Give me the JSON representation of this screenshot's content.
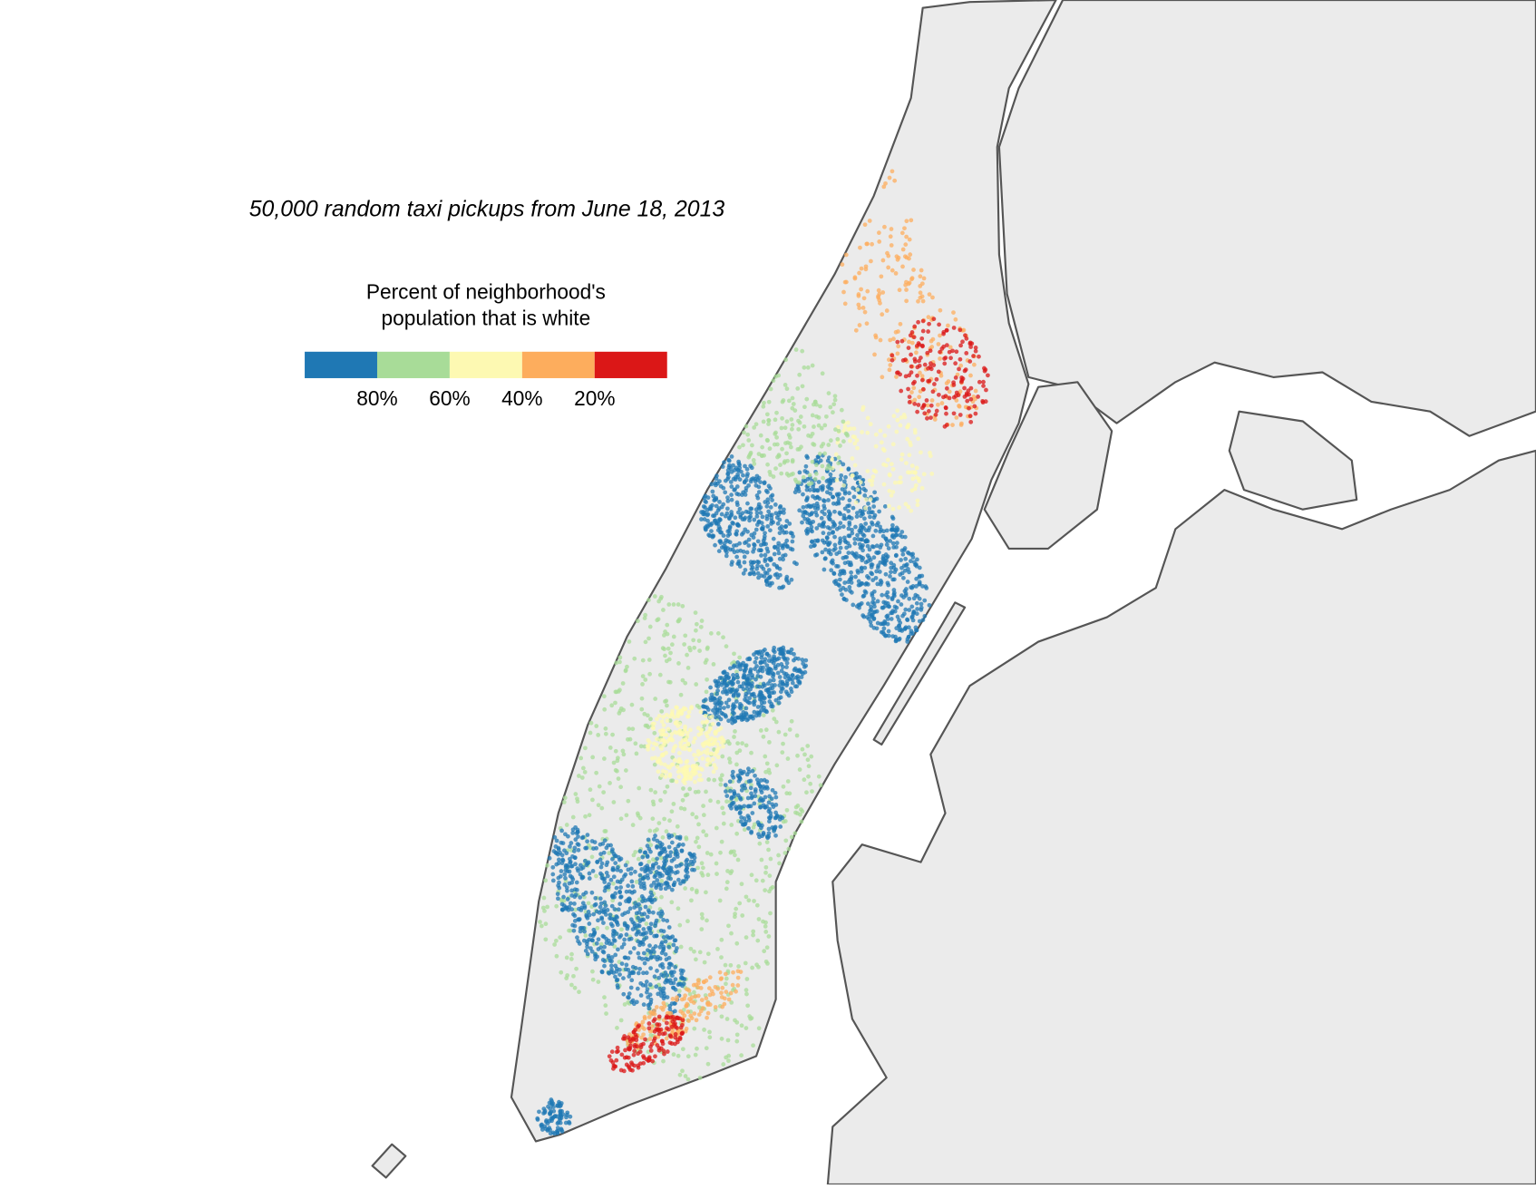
{
  "title": "50,000 random taxi pickups from June 18, 2013",
  "legend": {
    "title_lines": [
      "Percent of neighborhood's",
      "population that is white"
    ],
    "colors": [
      "#1f78b4",
      "#a8dc98",
      "#fdf9b2",
      "#fdad5d",
      "#db1717"
    ],
    "ticks": [
      "80%",
      "60%",
      "40%",
      "20%"
    ]
  }
}
